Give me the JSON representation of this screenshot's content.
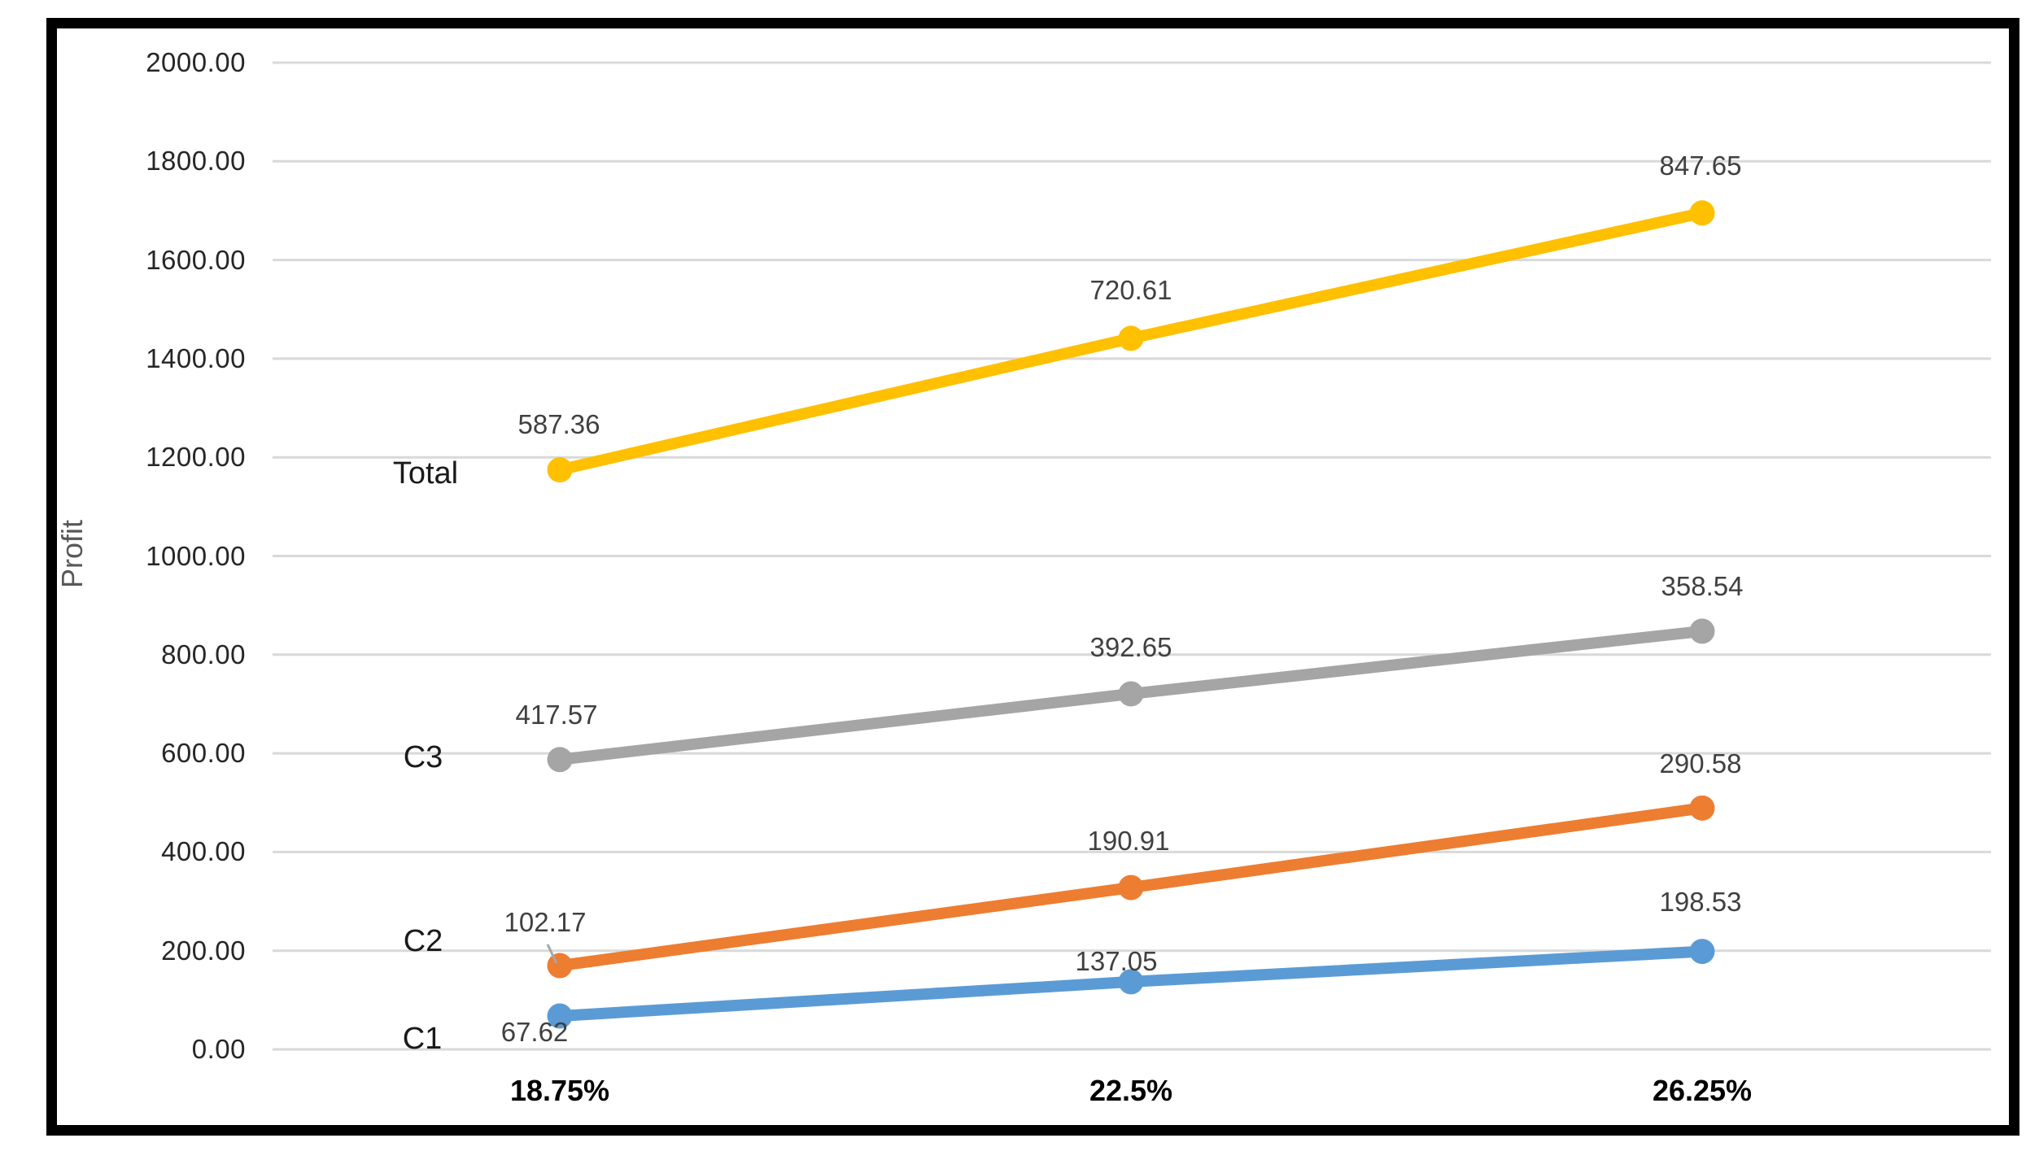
{
  "chart_data": {
    "type": "line",
    "stacked": true,
    "title": "",
    "xlabel": "",
    "ylabel": "Profit",
    "categories": [
      "18.75%",
      "22.5%",
      "26.25%"
    ],
    "series": [
      {
        "name": "C1",
        "color": "#5B9BD5",
        "values": [
          67.62,
          137.05,
          198.53
        ]
      },
      {
        "name": "C2",
        "color": "#ED7D31",
        "values": [
          102.17,
          190.91,
          290.58
        ]
      },
      {
        "name": "C3",
        "color": "#A5A5A5",
        "values": [
          417.57,
          392.65,
          358.54
        ]
      },
      {
        "name": "Total",
        "color": "#FFC000",
        "values": [
          587.36,
          720.61,
          847.65
        ]
      }
    ],
    "ylim": [
      0,
      2000
    ],
    "y_tick_step": 200,
    "y_tick_decimals": 2,
    "data_label_decimals": 2,
    "grid": true,
    "legend": "inline-series-name-labels"
  },
  "colors": {
    "frame_border": "#000000",
    "gridline": "#D9D9D9",
    "leader_line": "#A6A6A6",
    "data_label_text": "#404040",
    "axis_tick_text": "#262626",
    "axis_title_text": "#595959",
    "background": "#FFFFFF"
  }
}
